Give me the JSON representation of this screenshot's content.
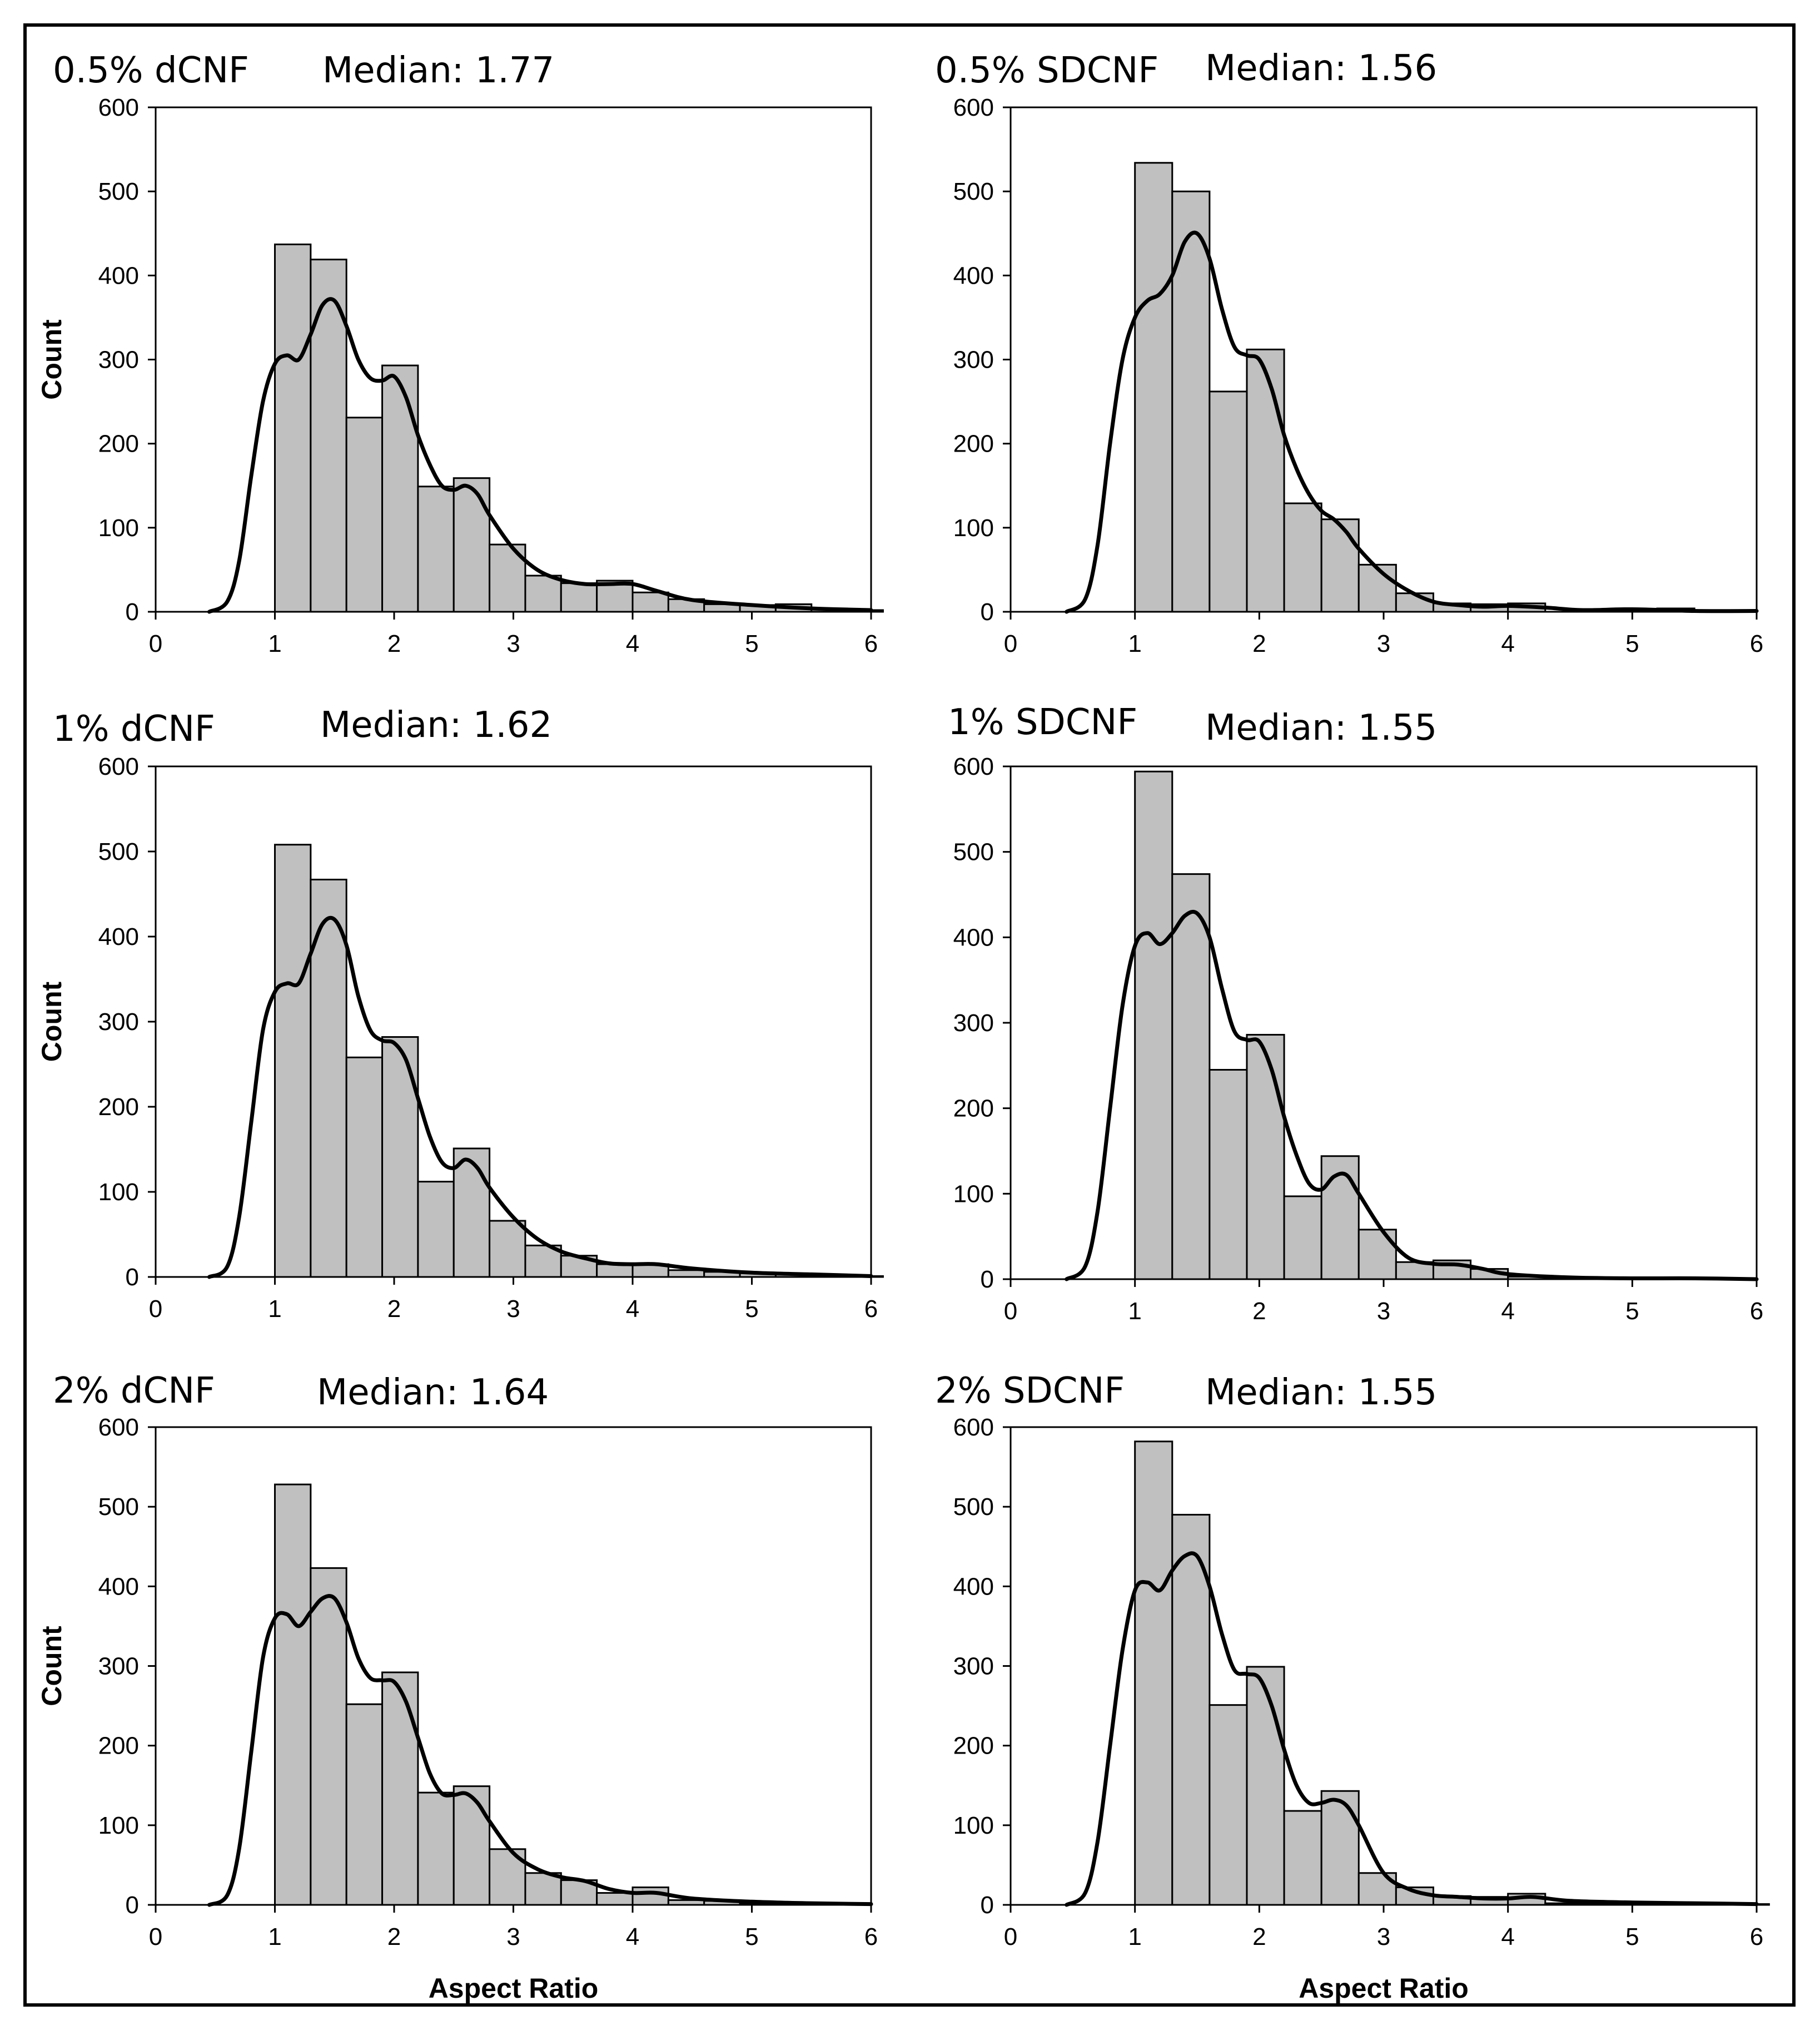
{
  "figure": {
    "x_axis_title": "Aspect Ratio",
    "y_axis_title": "Count"
  },
  "chart_data": [
    {
      "type": "bar",
      "title": "0.5% dCNF",
      "subtitle": "Median: 1.77",
      "xlabel": "",
      "ylabel": "Count",
      "xlim": [
        0,
        6
      ],
      "ylim": [
        0,
        600
      ],
      "xticks": [
        0,
        1,
        2,
        3,
        4,
        5,
        6
      ],
      "yticks": [
        0,
        100,
        200,
        300,
        400,
        500,
        600
      ],
      "bin_start": 1.0,
      "bin_width": 0.3,
      "values": [
        437,
        419,
        231,
        293,
        149,
        159,
        80,
        43,
        34,
        37,
        23,
        15,
        9,
        8,
        9,
        4,
        2
      ],
      "kde_x": [
        0.45,
        0.6,
        0.7,
        0.8,
        0.9,
        1.0,
        1.1,
        1.2,
        1.3,
        1.4,
        1.5,
        1.6,
        1.7,
        1.8,
        1.9,
        2.0,
        2.1,
        2.2,
        2.3,
        2.4,
        2.5,
        2.6,
        2.7,
        2.8,
        3.0,
        3.2,
        3.4,
        3.6,
        3.8,
        4.0,
        4.2,
        4.5,
        5.0,
        5.5,
        6.0
      ],
      "kde_y": [
        0,
        12,
        60,
        160,
        250,
        295,
        305,
        300,
        330,
        365,
        370,
        340,
        300,
        278,
        275,
        280,
        255,
        210,
        175,
        150,
        145,
        150,
        140,
        115,
        75,
        50,
        38,
        33,
        33,
        33,
        25,
        14,
        8,
        4,
        2
      ]
    },
    {
      "type": "bar",
      "title": "0.5% SDCNF",
      "subtitle": "Median: 1.56",
      "xlabel": "",
      "ylabel": "",
      "xlim": [
        0,
        6
      ],
      "ylim": [
        0,
        600
      ],
      "xticks": [
        0,
        1,
        2,
        3,
        4,
        5,
        6
      ],
      "yticks": [
        0,
        100,
        200,
        300,
        400,
        500,
        600
      ],
      "bin_start": 1.0,
      "bin_width": 0.3,
      "values": [
        534,
        500,
        262,
        312,
        129,
        110,
        56,
        22,
        10,
        9,
        10,
        0,
        0,
        3,
        4,
        0,
        0
      ],
      "kde_x": [
        0.45,
        0.6,
        0.7,
        0.8,
        0.9,
        1.0,
        1.1,
        1.2,
        1.3,
        1.4,
        1.5,
        1.6,
        1.7,
        1.8,
        1.9,
        2.0,
        2.1,
        2.2,
        2.3,
        2.4,
        2.5,
        2.6,
        2.7,
        2.8,
        3.0,
        3.2,
        3.4,
        3.6,
        3.8,
        4.0,
        4.3,
        4.6,
        5.0,
        5.5,
        6.0
      ],
      "kde_y": [
        0,
        15,
        80,
        200,
        300,
        350,
        370,
        378,
        400,
        440,
        450,
        420,
        360,
        315,
        305,
        300,
        265,
        210,
        170,
        140,
        120,
        110,
        95,
        75,
        45,
        25,
        12,
        8,
        6,
        7,
        5,
        2,
        3,
        1,
        1
      ]
    },
    {
      "type": "bar",
      "title": "1% dCNF",
      "subtitle": "Median: 1.62",
      "xlabel": "",
      "ylabel": "Count",
      "xlim": [
        0,
        6
      ],
      "ylim": [
        0,
        600
      ],
      "xticks": [
        0,
        1,
        2,
        3,
        4,
        5,
        6
      ],
      "yticks": [
        0,
        100,
        200,
        300,
        400,
        500,
        600
      ],
      "bin_start": 1.0,
      "bin_width": 0.3,
      "values": [
        508,
        467,
        258,
        282,
        112,
        151,
        66,
        37,
        25,
        15,
        15,
        8,
        6,
        5,
        4,
        2,
        1
      ],
      "kde_x": [
        0.45,
        0.6,
        0.7,
        0.8,
        0.9,
        1.0,
        1.1,
        1.2,
        1.3,
        1.4,
        1.5,
        1.6,
        1.7,
        1.8,
        1.9,
        2.0,
        2.1,
        2.2,
        2.3,
        2.4,
        2.5,
        2.6,
        2.7,
        2.8,
        3.0,
        3.2,
        3.4,
        3.6,
        3.8,
        4.0,
        4.2,
        4.5,
        5.0,
        5.5,
        6.0
      ],
      "kde_y": [
        0,
        12,
        70,
        180,
        290,
        335,
        345,
        345,
        380,
        415,
        420,
        390,
        330,
        290,
        278,
        275,
        255,
        210,
        165,
        135,
        128,
        138,
        128,
        105,
        70,
        45,
        30,
        22,
        16,
        15,
        15,
        10,
        5,
        3,
        1
      ]
    },
    {
      "type": "bar",
      "title": "1% SDCNF",
      "subtitle": "Median: 1.55",
      "xlabel": "",
      "ylabel": "",
      "xlim": [
        0,
        6
      ],
      "ylim": [
        0,
        600
      ],
      "xticks": [
        0,
        1,
        2,
        3,
        4,
        5,
        6
      ],
      "yticks": [
        0,
        100,
        200,
        300,
        400,
        500,
        600
      ],
      "bin_start": 1.0,
      "bin_width": 0.3,
      "values": [
        594,
        474,
        245,
        286,
        97,
        144,
        58,
        20,
        22,
        12,
        3,
        2,
        2,
        0,
        0,
        0,
        0
      ],
      "kde_x": [
        0.45,
        0.6,
        0.7,
        0.8,
        0.9,
        1.0,
        1.1,
        1.2,
        1.3,
        1.4,
        1.5,
        1.6,
        1.7,
        1.8,
        1.9,
        2.0,
        2.1,
        2.2,
        2.3,
        2.4,
        2.5,
        2.6,
        2.7,
        2.8,
        3.0,
        3.2,
        3.4,
        3.6,
        3.8,
        4.0,
        4.5,
        5.0,
        5.5,
        6.0
      ],
      "kde_y": [
        0,
        15,
        80,
        200,
        320,
        390,
        405,
        392,
        405,
        425,
        428,
        400,
        340,
        290,
        280,
        278,
        245,
        190,
        145,
        112,
        105,
        120,
        122,
        100,
        55,
        25,
        18,
        17,
        12,
        6,
        2,
        1,
        1,
        0
      ]
    },
    {
      "type": "bar",
      "title": "2% dCNF",
      "subtitle": "Median: 1.64",
      "xlabel": "Aspect Ratio",
      "ylabel": "Count",
      "xlim": [
        0,
        6
      ],
      "ylim": [
        0,
        600
      ],
      "xticks": [
        0,
        1,
        2,
        3,
        4,
        5,
        6
      ],
      "yticks": [
        0,
        100,
        200,
        300,
        400,
        500,
        600
      ],
      "bin_start": 1.0,
      "bin_width": 0.3,
      "values": [
        528,
        423,
        252,
        292,
        141,
        149,
        70,
        40,
        31,
        15,
        22,
        6,
        5,
        2,
        1,
        1,
        0
      ],
      "kde_x": [
        0.45,
        0.6,
        0.7,
        0.8,
        0.9,
        1.0,
        1.1,
        1.2,
        1.3,
        1.4,
        1.5,
        1.6,
        1.7,
        1.8,
        1.9,
        2.0,
        2.1,
        2.2,
        2.3,
        2.4,
        2.5,
        2.6,
        2.7,
        2.8,
        3.0,
        3.2,
        3.4,
        3.6,
        3.8,
        4.0,
        4.2,
        4.5,
        5.0,
        5.5,
        6.0
      ],
      "kde_y": [
        0,
        12,
        70,
        190,
        310,
        360,
        365,
        350,
        368,
        385,
        385,
        355,
        310,
        285,
        282,
        280,
        255,
        210,
        165,
        140,
        138,
        140,
        128,
        105,
        65,
        45,
        35,
        30,
        20,
        15,
        15,
        8,
        4,
        2,
        1
      ]
    },
    {
      "type": "bar",
      "title": "2% SDCNF",
      "subtitle": "Median: 1.55",
      "xlabel": "Aspect Ratio",
      "ylabel": "",
      "xlim": [
        0,
        6
      ],
      "ylim": [
        0,
        600
      ],
      "xticks": [
        0,
        1,
        2,
        3,
        4,
        5,
        6
      ],
      "yticks": [
        0,
        100,
        200,
        300,
        400,
        500,
        600
      ],
      "bin_start": 1.0,
      "bin_width": 0.3,
      "values": [
        582,
        490,
        251,
        299,
        118,
        143,
        40,
        22,
        11,
        10,
        14,
        2,
        2,
        1,
        1,
        1,
        1
      ],
      "kde_x": [
        0.45,
        0.6,
        0.7,
        0.8,
        0.9,
        1.0,
        1.1,
        1.2,
        1.3,
        1.4,
        1.5,
        1.6,
        1.7,
        1.8,
        1.9,
        2.0,
        2.1,
        2.2,
        2.3,
        2.4,
        2.5,
        2.6,
        2.7,
        2.8,
        3.0,
        3.2,
        3.4,
        3.6,
        3.8,
        4.0,
        4.2,
        4.5,
        5.0,
        5.5,
        6.0
      ],
      "kde_y": [
        0,
        15,
        80,
        200,
        320,
        395,
        405,
        395,
        420,
        438,
        438,
        400,
        340,
        295,
        290,
        285,
        250,
        195,
        150,
        128,
        128,
        132,
        125,
        100,
        40,
        20,
        12,
        10,
        8,
        8,
        10,
        5,
        3,
        2,
        1
      ]
    }
  ]
}
